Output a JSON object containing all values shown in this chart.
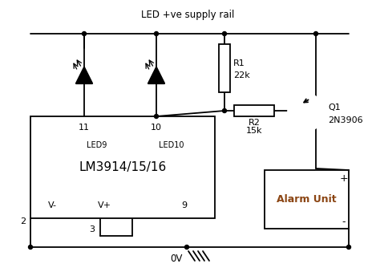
{
  "bg_color": "#ffffff",
  "line_color": "#000000",
  "alarm_text_color": "#8B4513",
  "supply_rail_label": "LED +ve supply rail",
  "ic_label": "LM3914/15/16",
  "led9_label": "LED9",
  "led10_label": "LED10",
  "r1_label1": "R1",
  "r1_label2": "22k",
  "r2_label1": "R2",
  "r2_label2": "15k",
  "q1_label1": "Q1",
  "q1_label2": "2N3906",
  "alarm_label": "Alarm Unit",
  "ov_label": "0V",
  "plus_label": "+",
  "minus_label": "-",
  "pin11": "11",
  "pin10": "10",
  "pin9": "9",
  "pin2": "2",
  "pin3": "3",
  "vminus": "V-",
  "vplus": "V+"
}
